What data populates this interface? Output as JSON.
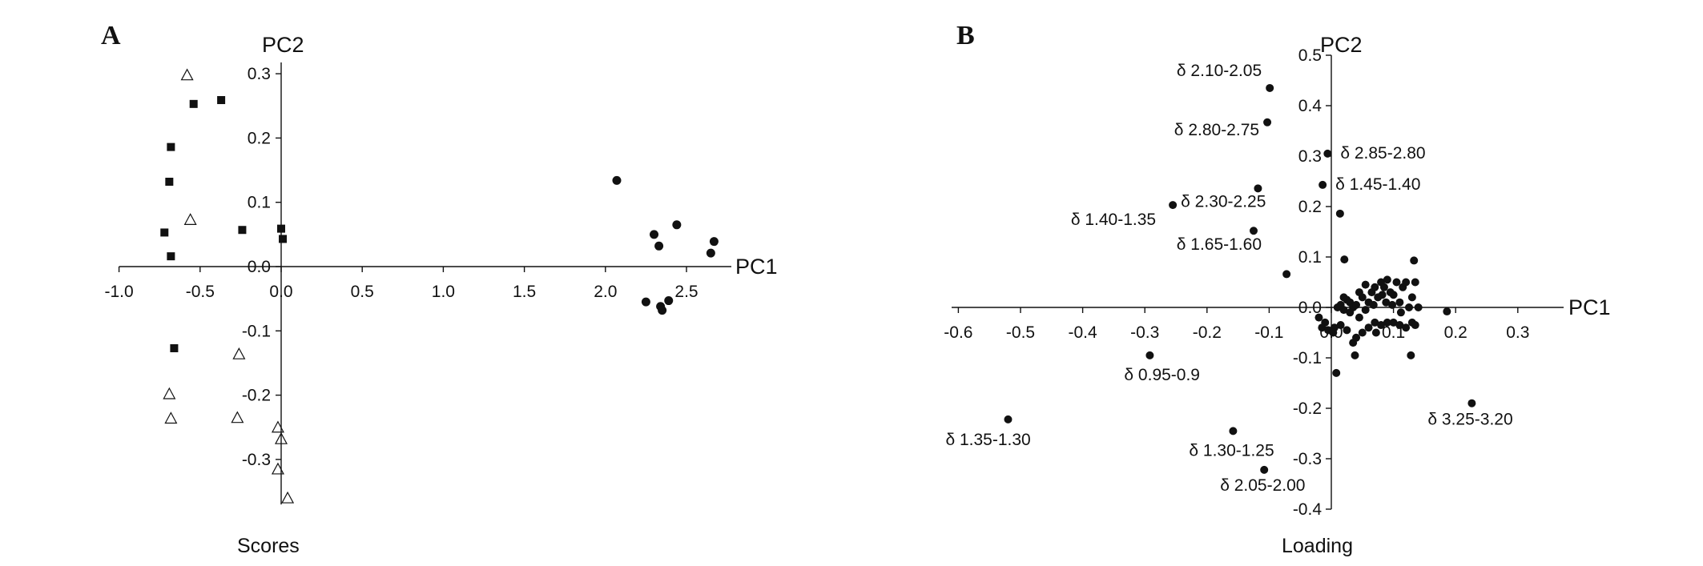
{
  "chart_data": [
    {
      "panel": "A",
      "type": "scatter",
      "caption": "Scores",
      "xlabel": "PC1",
      "ylabel": "PC2",
      "xlim": [
        -1.0,
        2.7
      ],
      "ylim": [
        -0.37,
        0.32
      ],
      "x_ticks": [
        "-1.0",
        "-0.5",
        "0.0",
        "0.5",
        "1.0",
        "1.5",
        "2.0",
        "2.5"
      ],
      "y_ticks": [
        "0.3",
        "0.2",
        "0.1",
        "0.0",
        "-0.1",
        "-0.2",
        "-0.3"
      ],
      "grid": false,
      "series": [
        {
          "marker": "square",
          "points": [
            [
              -0.54,
              0.253
            ],
            [
              -0.37,
              0.259
            ],
            [
              -0.68,
              0.186
            ],
            [
              -0.69,
              0.132
            ],
            [
              -0.72,
              0.053
            ],
            [
              -0.68,
              0.016
            ],
            [
              -0.24,
              0.057
            ],
            [
              0.0,
              0.059
            ],
            [
              0.01,
              0.043
            ],
            [
              -0.66,
              -0.127
            ]
          ]
        },
        {
          "marker": "open-triangle",
          "points": [
            [
              -0.58,
              0.298
            ],
            [
              -0.56,
              0.073
            ],
            [
              -0.26,
              -0.136
            ],
            [
              -0.69,
              -0.198
            ],
            [
              -0.68,
              -0.236
            ],
            [
              -0.27,
              -0.235
            ],
            [
              -0.02,
              -0.25
            ],
            [
              0.0,
              -0.268
            ],
            [
              -0.02,
              -0.315
            ],
            [
              0.04,
              -0.36
            ]
          ]
        },
        {
          "marker": "filled-circle",
          "points": [
            [
              2.07,
              0.134
            ],
            [
              2.3,
              0.05
            ],
            [
              2.33,
              0.032
            ],
            [
              2.44,
              0.065
            ],
            [
              2.67,
              0.039
            ],
            [
              2.65,
              0.021
            ],
            [
              2.25,
              -0.055
            ],
            [
              2.39,
              -0.053
            ],
            [
              2.34,
              -0.062
            ],
            [
              2.35,
              -0.068
            ]
          ]
        }
      ]
    },
    {
      "panel": "B",
      "type": "scatter",
      "caption": "Loading",
      "xlabel": "PC1",
      "ylabel": "PC2",
      "xlim": [
        -0.6,
        0.35
      ],
      "ylim": [
        -0.4,
        0.5
      ],
      "x_ticks": [
        "-0.6",
        "-0.5",
        "-0.4",
        "-0.3",
        "-0.2",
        "-0.1",
        "0.0",
        "0.1",
        "0.2",
        "0.3"
      ],
      "y_ticks": [
        "0.5",
        "0.4",
        "0.3",
        "0.2",
        "0.1",
        "0.0",
        "-0.1",
        "-0.2",
        "-0.3",
        "-0.4"
      ],
      "grid": false,
      "labeled_points": [
        {
          "x": -0.099,
          "y": 0.435,
          "label": "δ 2.10-2.05"
        },
        {
          "x": -0.103,
          "y": 0.367,
          "label": "δ 2.80-2.75"
        },
        {
          "x": -0.006,
          "y": 0.305,
          "label": "δ 2.85-2.80"
        },
        {
          "x": -0.014,
          "y": 0.243,
          "label": "δ 1.45-1.40"
        },
        {
          "x": -0.118,
          "y": 0.236,
          "label": "δ 2.30-2.25"
        },
        {
          "x": -0.255,
          "y": 0.203,
          "label": "δ 1.40-1.35"
        },
        {
          "x": -0.125,
          "y": 0.152,
          "label": "δ 1.65-1.60"
        },
        {
          "x": -0.292,
          "y": -0.095,
          "label": "δ 0.95-0.9"
        },
        {
          "x": 0.226,
          "y": -0.19,
          "label": "δ 3.25-3.20"
        },
        {
          "x": -0.52,
          "y": -0.222,
          "label": "δ 1.35-1.30"
        },
        {
          "x": -0.158,
          "y": -0.245,
          "label": "δ 1.30-1.25"
        },
        {
          "x": -0.108,
          "y": -0.322,
          "label": "δ 2.05-2.00"
        }
      ],
      "points": [
        [
          0.014,
          0.186
        ],
        [
          0.021,
          0.095
        ],
        [
          -0.072,
          0.066
        ],
        [
          0.133,
          0.093
        ],
        [
          0.186,
          -0.008
        ],
        [
          0.008,
          -0.13
        ],
        [
          -0.02,
          -0.02
        ],
        [
          -0.01,
          -0.03
        ],
        [
          -0.015,
          -0.04
        ],
        [
          -0.005,
          -0.045
        ],
        [
          0.005,
          -0.04
        ],
        [
          0.003,
          -0.05
        ],
        [
          0.015,
          -0.035
        ],
        [
          0.025,
          -0.045
        ],
        [
          0.035,
          -0.07
        ],
        [
          0.04,
          -0.06
        ],
        [
          0.05,
          -0.05
        ],
        [
          0.038,
          -0.095
        ],
        [
          0.06,
          -0.04
        ],
        [
          0.07,
          -0.03
        ],
        [
          0.08,
          -0.035
        ],
        [
          0.09,
          -0.03
        ],
        [
          0.1,
          -0.03
        ],
        [
          0.11,
          -0.035
        ],
        [
          0.12,
          -0.04
        ],
        [
          0.13,
          -0.03
        ],
        [
          0.135,
          -0.035
        ],
        [
          0.128,
          -0.095
        ],
        [
          0.02,
          0.02
        ],
        [
          0.025,
          0.015
        ],
        [
          0.03,
          0.01
        ],
        [
          0.035,
          0.0
        ],
        [
          0.04,
          0.005
        ],
        [
          0.045,
          0.03
        ],
        [
          0.05,
          0.02
        ],
        [
          0.055,
          -0.005
        ],
        [
          0.06,
          0.01
        ],
        [
          0.065,
          0.03
        ],
        [
          0.07,
          0.04
        ],
        [
          0.075,
          0.02
        ],
        [
          0.08,
          0.05
        ],
        [
          0.085,
          0.04
        ],
        [
          0.09,
          0.055
        ],
        [
          0.095,
          0.03
        ],
        [
          0.1,
          0.025
        ],
        [
          0.105,
          0.05
        ],
        [
          0.11,
          0.01
        ],
        [
          0.115,
          0.04
        ],
        [
          0.12,
          0.05
        ],
        [
          0.125,
          0.0
        ],
        [
          0.13,
          0.02
        ],
        [
          0.14,
          0.0
        ],
        [
          0.135,
          0.05
        ],
        [
          0.03,
          -0.01
        ],
        [
          0.015,
          0.005
        ],
        [
          0.01,
          0.0
        ],
        [
          0.02,
          -0.005
        ],
        [
          0.045,
          -0.02
        ],
        [
          0.055,
          0.045
        ],
        [
          0.068,
          0.005
        ],
        [
          0.088,
          0.01
        ],
        [
          0.098,
          0.005
        ],
        [
          0.112,
          -0.01
        ],
        [
          0.072,
          -0.05
        ],
        [
          0.082,
          0.025
        ]
      ]
    }
  ]
}
